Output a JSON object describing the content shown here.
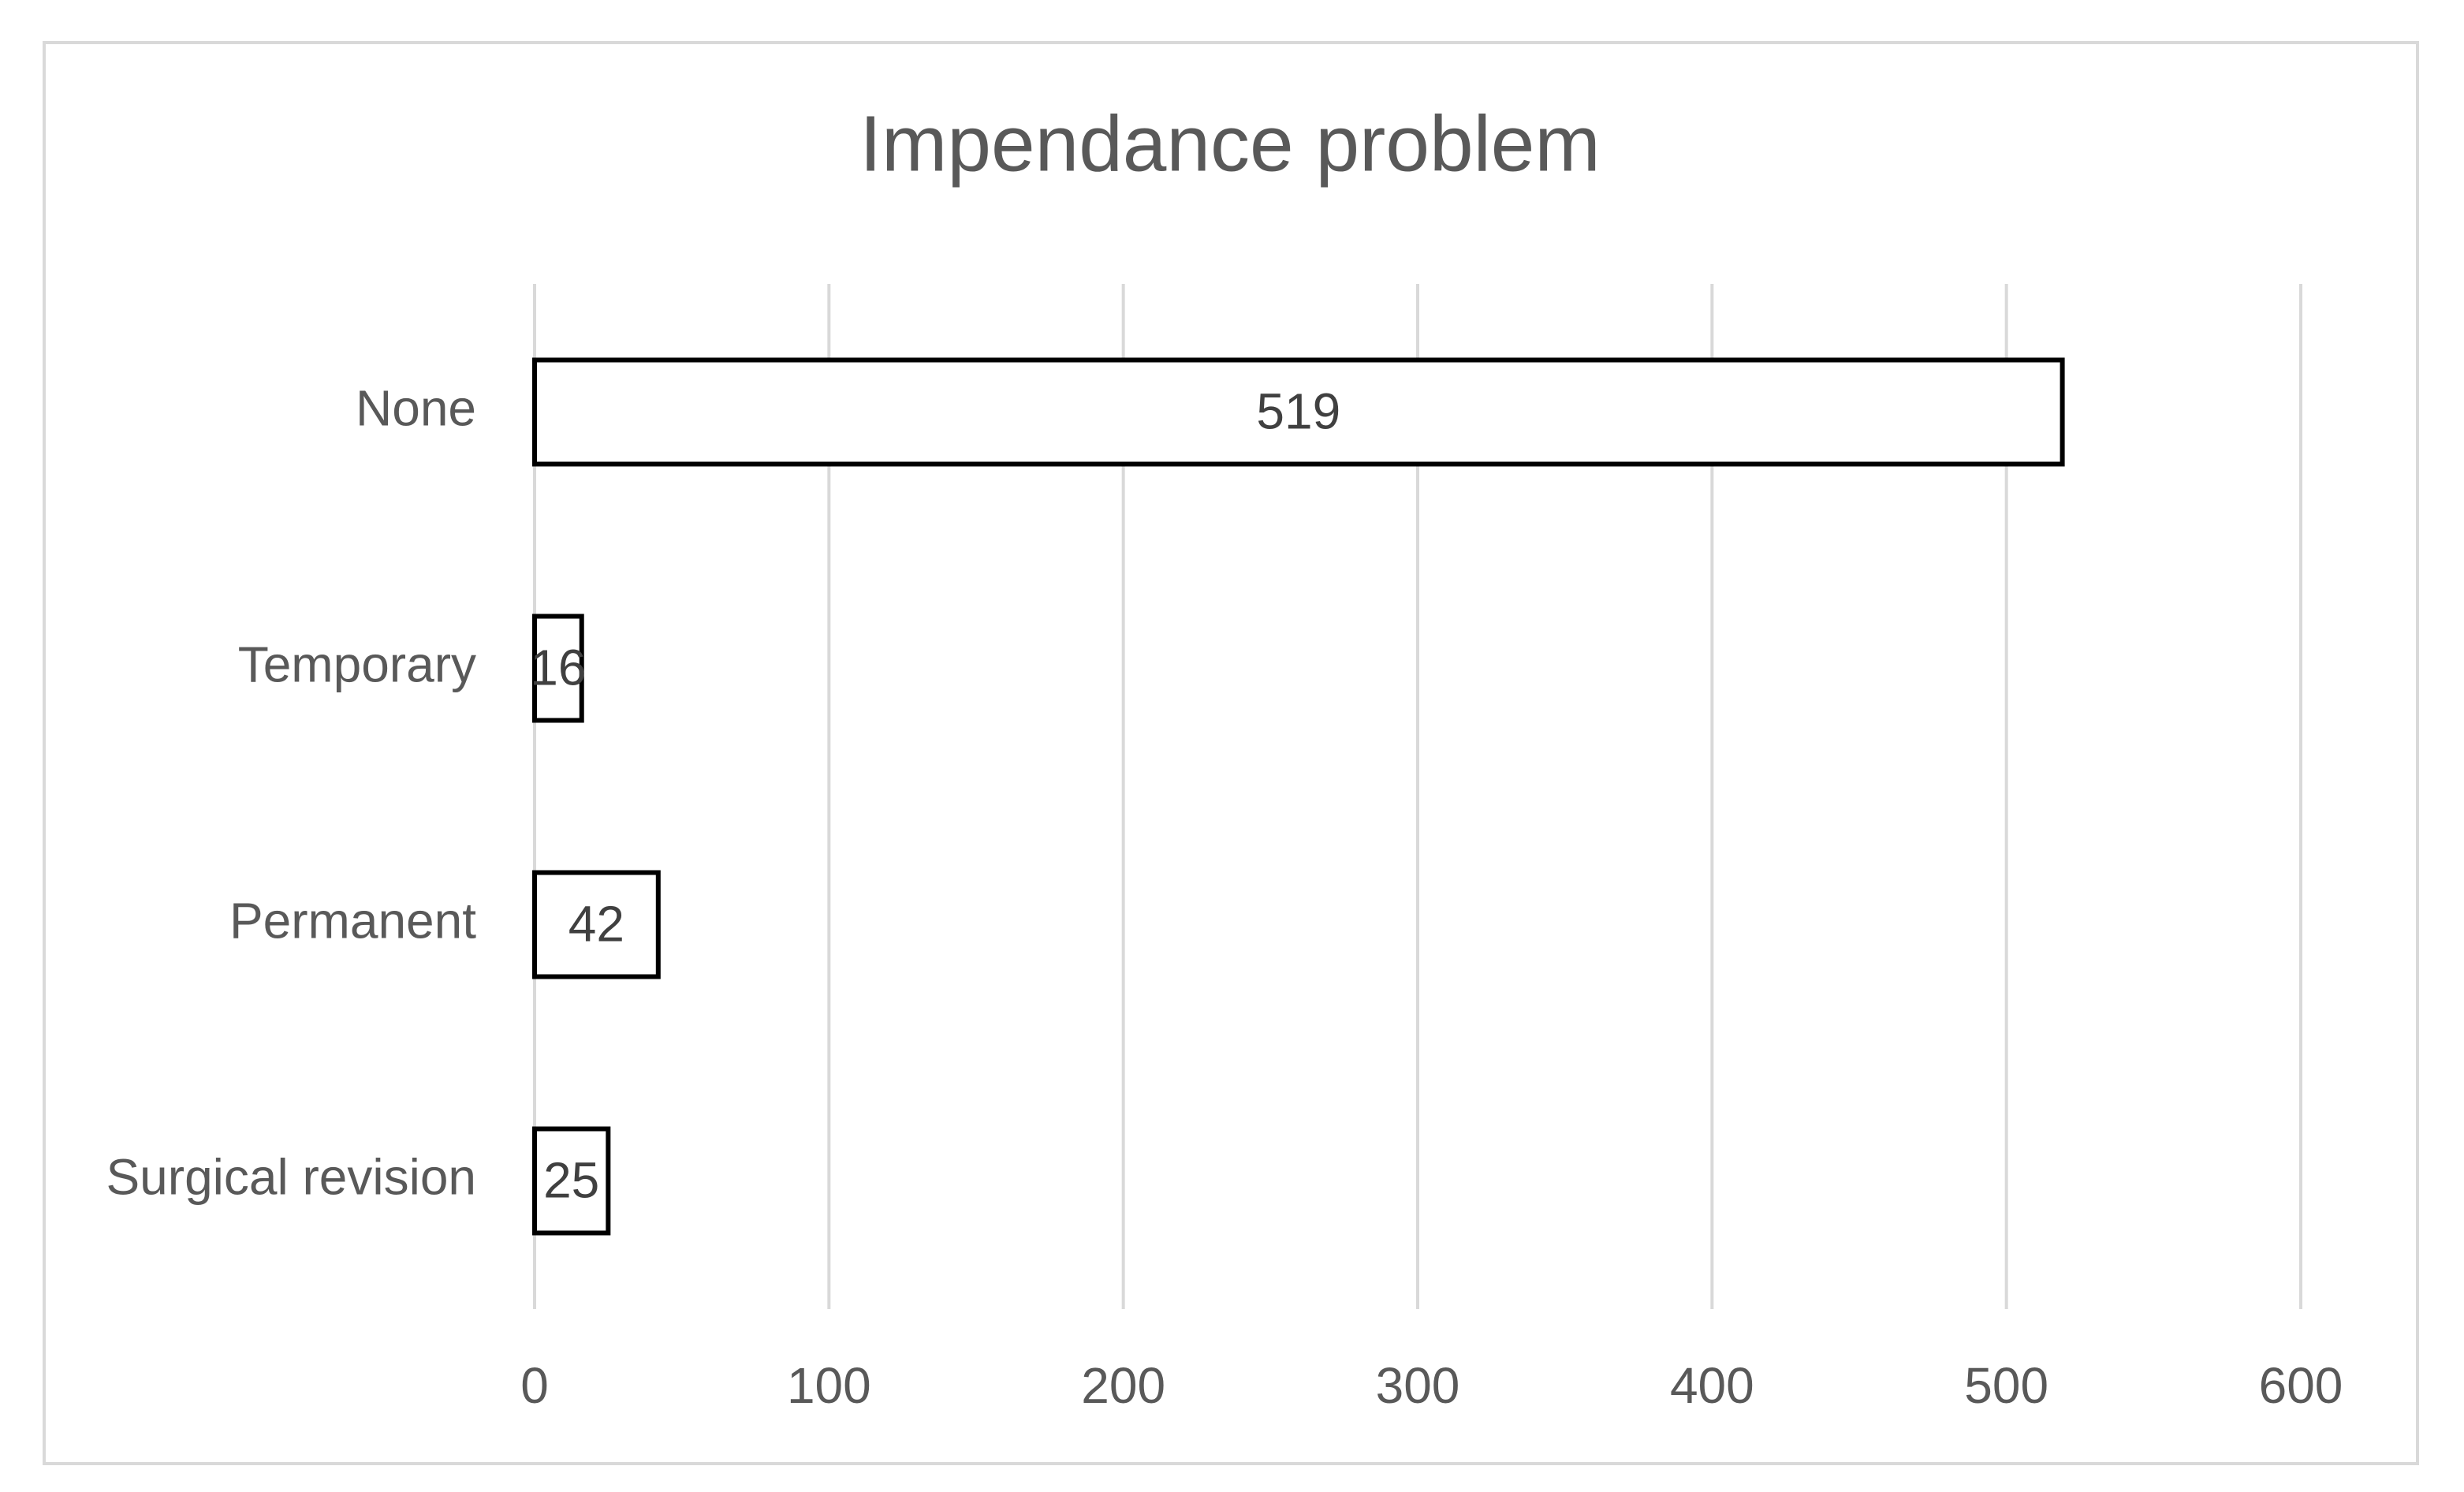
{
  "chart_data": {
    "type": "hbar",
    "title": "Impendance problem",
    "categories": [
      "None",
      "Temporary",
      "Permanent",
      "Surgical revision"
    ],
    "values": [
      519,
      16,
      42,
      25
    ],
    "color": "#ffffff",
    "edge_color": "#000000",
    "xlim": [
      0,
      600
    ],
    "xticks": [
      0,
      100,
      200,
      300,
      400,
      500,
      600
    ],
    "grid": true
  }
}
